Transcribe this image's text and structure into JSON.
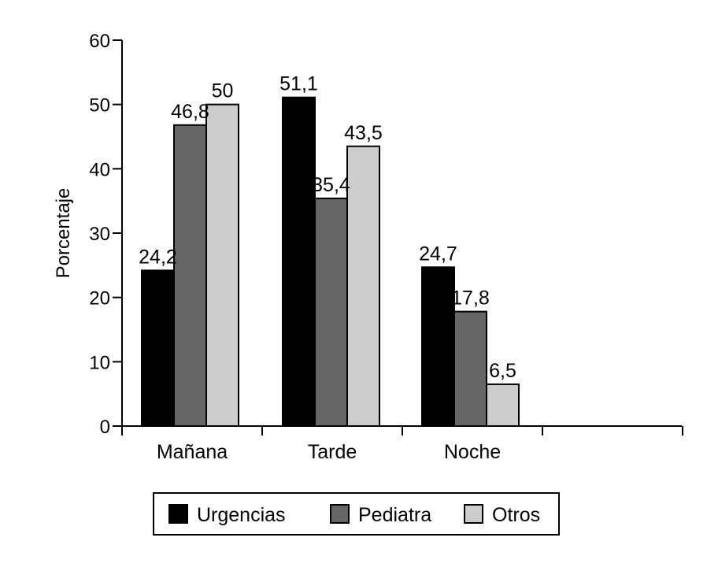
{
  "chart_data": {
    "type": "bar",
    "title": "",
    "xlabel": "",
    "ylabel": "Porcentaje",
    "ylim": [
      0,
      60
    ],
    "yticks": [
      0,
      10,
      20,
      30,
      40,
      50,
      60
    ],
    "ytick_labels": [
      "0",
      "10",
      "20",
      "30",
      "40",
      "50",
      "60"
    ],
    "categories": [
      "Mañana",
      "Tarde",
      "Noche"
    ],
    "series": [
      {
        "name": "Urgencias",
        "color": "#000000",
        "values": [
          24.2,
          51.1,
          24.7
        ],
        "labels": [
          "24,2",
          "51,1",
          "24,7"
        ]
      },
      {
        "name": "Pediatra",
        "color": "#666666",
        "values": [
          46.8,
          35.4,
          17.8
        ],
        "labels": [
          "46,8",
          "35,4",
          "17,8"
        ]
      },
      {
        "name": "Otros",
        "color": "#cccccc",
        "values": [
          50,
          43.5,
          6.5
        ],
        "labels": [
          "50",
          "43,5",
          "6,5"
        ]
      }
    ],
    "grid": false,
    "legend_position": "bottom"
  }
}
